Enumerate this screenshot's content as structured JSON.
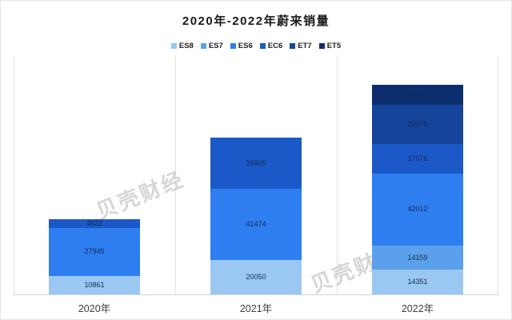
{
  "title": "2020年-2022年蔚来销量",
  "watermarks": [
    {
      "text": "贝壳财经"
    },
    {
      "text": "贝壳财经"
    }
  ],
  "chart_data": {
    "type": "bar",
    "stacked": true,
    "title": "2020年-2022年蔚来销量",
    "categories": [
      "2020年",
      "2021年",
      "2022年"
    ],
    "series": [
      {
        "name": "ES8",
        "color": "#9ac8f2",
        "values": [
          10861,
          20050,
          14351
        ]
      },
      {
        "name": "ES7",
        "color": "#5ba0ea",
        "values": [
          null,
          null,
          14159
        ]
      },
      {
        "name": "ES6",
        "color": "#2e7ef0",
        "values": [
          27945,
          41474,
          42012
        ]
      },
      {
        "name": "EC6",
        "color": "#1b59c8",
        "values": [
          4922,
          29905,
          17076
        ]
      },
      {
        "name": "ET7",
        "color": "#15449b",
        "values": [
          null,
          null,
          23075
        ]
      },
      {
        "name": "ET5",
        "color": "#0c2e6e",
        "values": [
          null,
          null,
          11813
        ]
      }
    ],
    "totals": [
      43728,
      91429,
      122486
    ],
    "xlabel": "",
    "ylabel": "",
    "ylim": [
      0,
      140000
    ],
    "legend_position": "top",
    "grid": "vertical category separators, no horizontal gridlines, no y-axis ticks",
    "value_labels": "inside segments, dark navy text",
    "label_text_color": "#13294f"
  }
}
